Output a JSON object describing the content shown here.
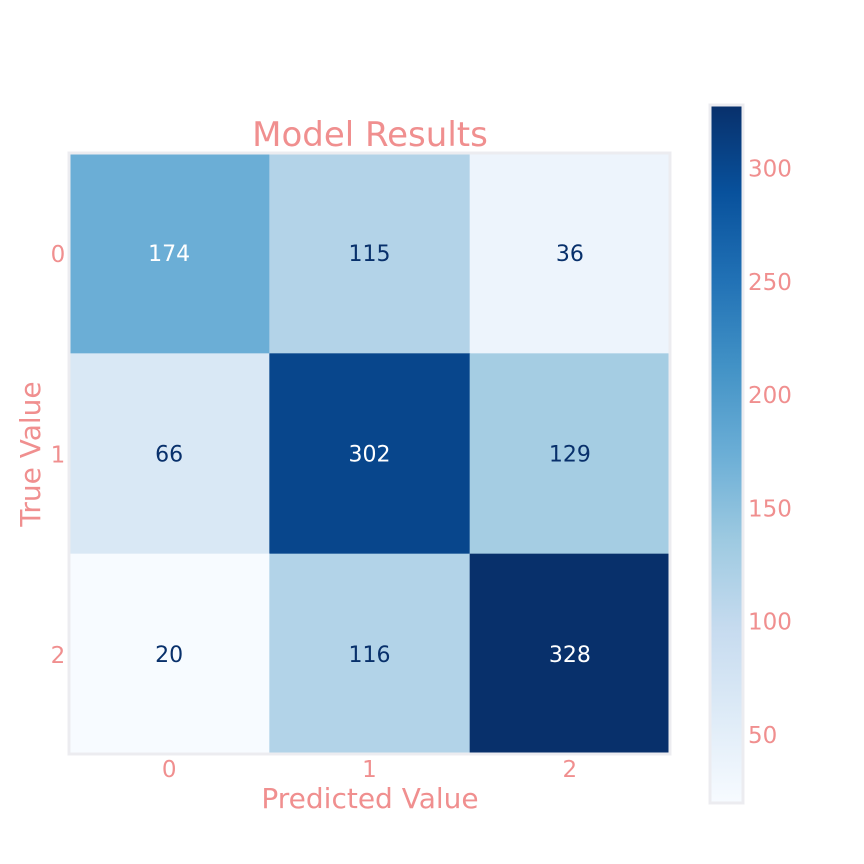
{
  "chart_data": {
    "type": "heatmap",
    "title": "Model Results",
    "xlabel": "Predicted Value",
    "ylabel": "True Value",
    "x_ticks": [
      "0",
      "1",
      "2"
    ],
    "y_ticks": [
      "0",
      "1",
      "2"
    ],
    "matrix": [
      [
        174,
        115,
        36
      ],
      [
        66,
        302,
        129
      ],
      [
        20,
        116,
        328
      ]
    ],
    "colormap": "Blues",
    "color_range": [
      20,
      328
    ],
    "colorbar_ticks": [
      "50",
      "100",
      "150",
      "200",
      "250",
      "300"
    ],
    "label_color": "#f08f8f"
  }
}
